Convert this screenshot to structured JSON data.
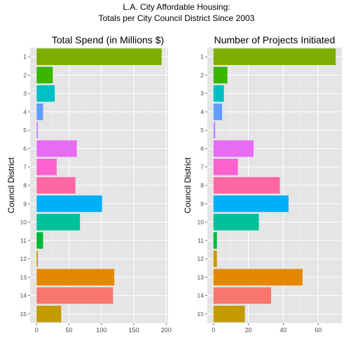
{
  "figure": {
    "title_line1": "L.A. City Affordable Housing:",
    "title_line2": "Totals per City Council District Since 2003"
  },
  "chart_data": [
    {
      "type": "bar",
      "orientation": "horizontal",
      "title": "Total Spend (in Millions $)",
      "ylabel": "Council District",
      "xlabel": "",
      "categories": [
        "1",
        "2",
        "3",
        "4",
        "5",
        "6",
        "7",
        "8",
        "9",
        "10",
        "11",
        "12",
        "13",
        "14",
        "15"
      ],
      "values": [
        193,
        25,
        28,
        10,
        2,
        62,
        31,
        60,
        101,
        67,
        10,
        2,
        120,
        118,
        38
      ],
      "xlim": [
        -10,
        203
      ],
      "xticks": [
        0,
        50,
        100,
        150,
        200
      ],
      "grid": true
    },
    {
      "type": "bar",
      "orientation": "horizontal",
      "title": "Number of Projects Initiated",
      "ylabel": "Council District",
      "xlabel": "",
      "categories": [
        "1",
        "2",
        "3",
        "4",
        "5",
        "6",
        "7",
        "8",
        "9",
        "10",
        "11",
        "12",
        "13",
        "14",
        "15"
      ],
      "values": [
        70,
        8,
        6,
        5,
        1,
        23,
        14,
        38,
        43,
        26,
        2,
        2,
        51,
        33,
        18
      ],
      "xlim": [
        -3.5,
        73.5
      ],
      "xticks": [
        0,
        20,
        40,
        60
      ],
      "grid": true
    }
  ],
  "colors": {
    "panel_background": "#e5e5e5",
    "grid_major": "#ffffff",
    "grid_minor": "#f2f2f2",
    "axis_text": "#4d4d4d",
    "bars": [
      "#7cae00",
      "#39b600",
      "#00bfc4",
      "#619cff",
      "#b983ff",
      "#e76bf3",
      "#fd61d1",
      "#ff67a4",
      "#00b0f6",
      "#00c19a",
      "#00ba38",
      "#c99800",
      "#e58700",
      "#f8766d",
      "#c49a00"
    ]
  }
}
